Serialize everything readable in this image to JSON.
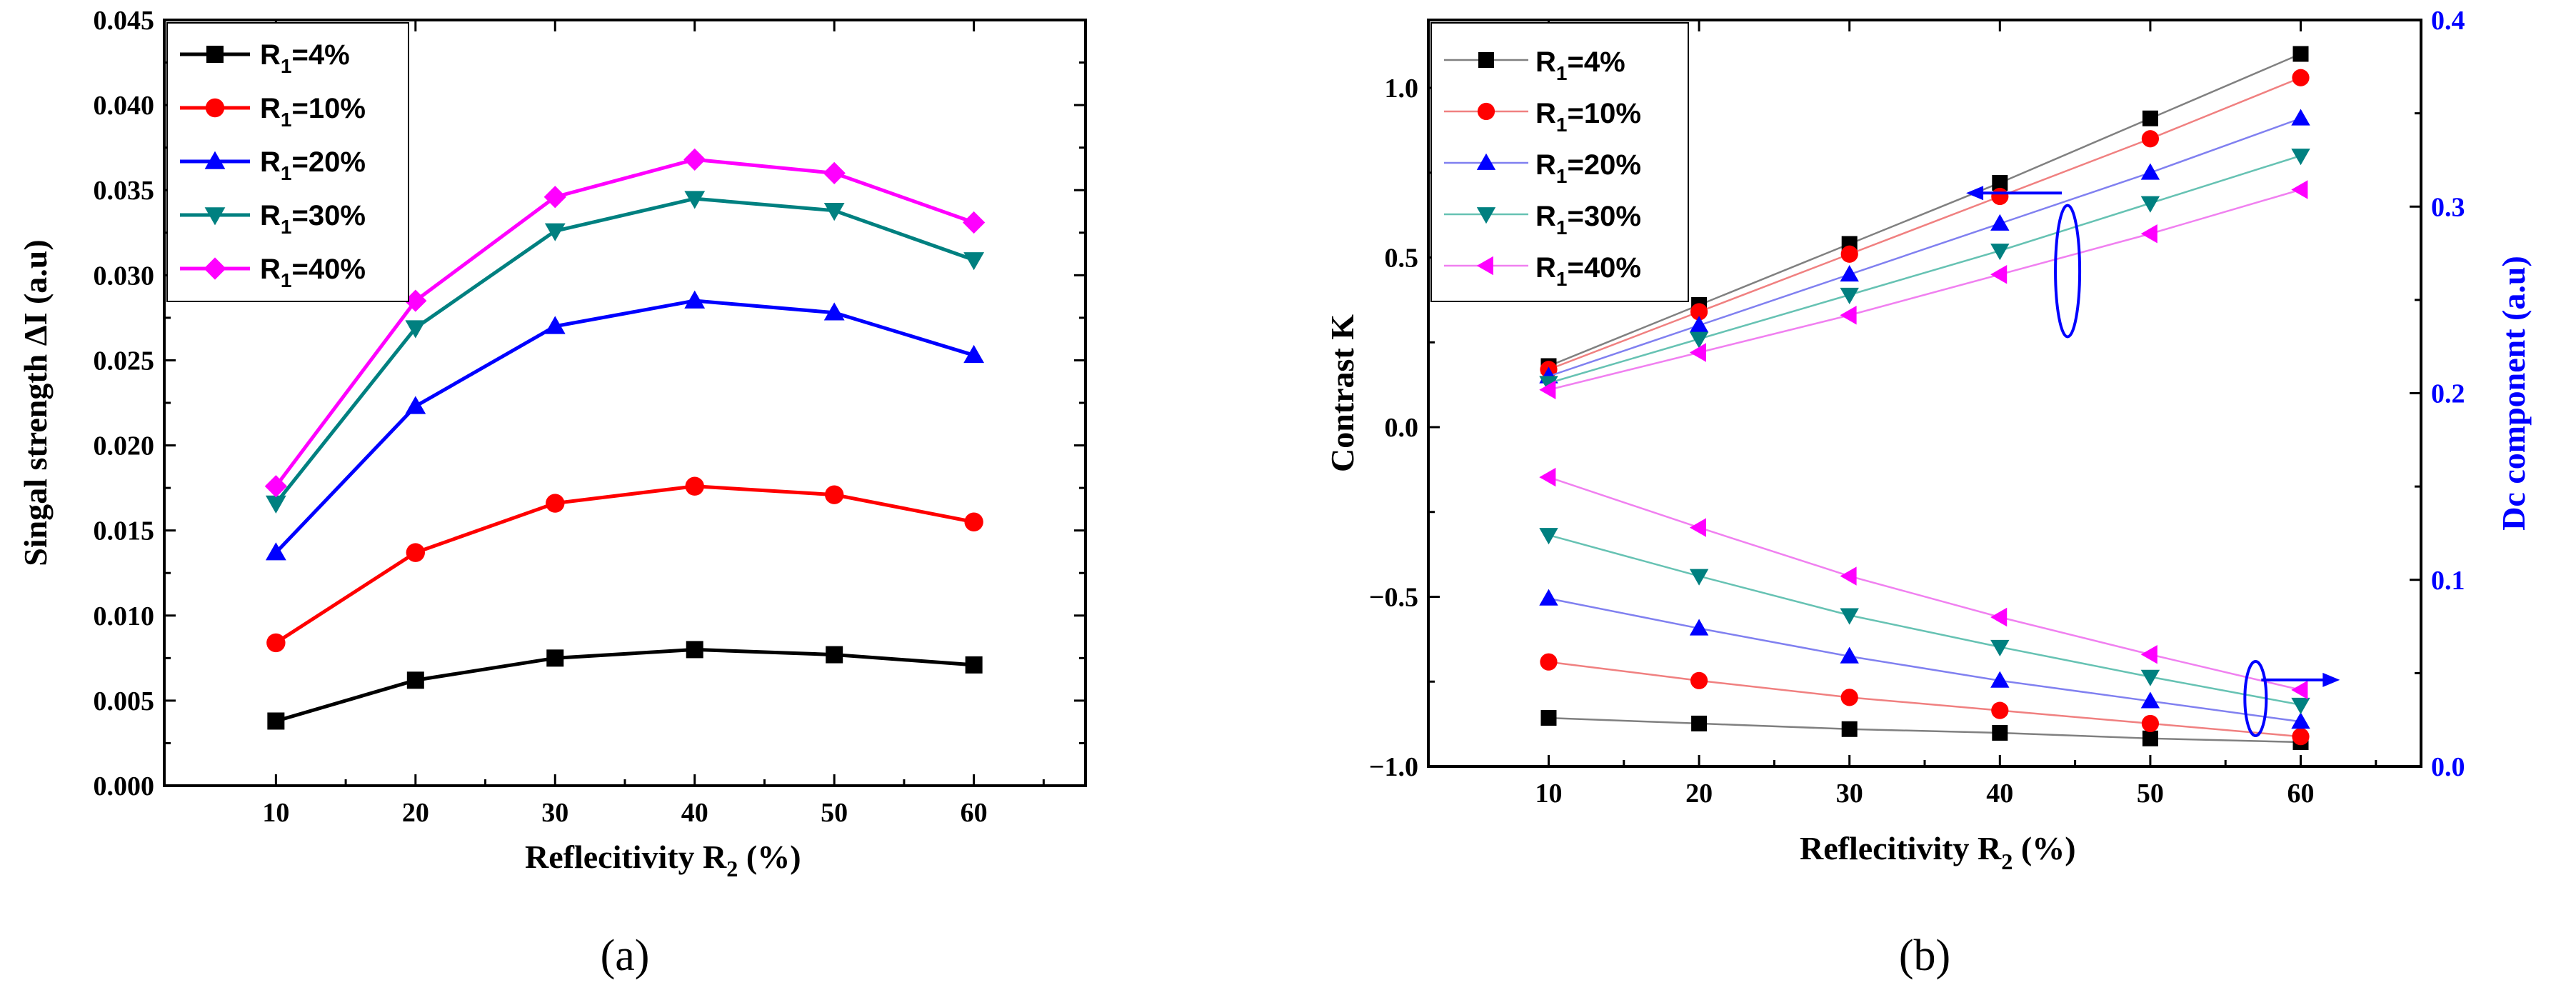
{
  "chart_data": [
    {
      "type": "line",
      "panel_label": "(a)",
      "xlabel": "Reflecitivity R",
      "xlabel_sub": "2",
      "xlabel_suffix": " (%)",
      "ylabel": "Singal strength ΔI (a.u)",
      "x": [
        10,
        20,
        30,
        40,
        50,
        60
      ],
      "xlim": [
        2,
        68
      ],
      "xticks": [
        "10",
        "20",
        "30",
        "40",
        "50",
        "60"
      ],
      "ylim": [
        0,
        0.045
      ],
      "yticks": [
        "0.000",
        "0.005",
        "0.010",
        "0.015",
        "0.020",
        "0.025",
        "0.030",
        "0.035",
        "0.040",
        "0.045"
      ],
      "legend_position": "top-left",
      "series": [
        {
          "name": "R",
          "sub": "1",
          "suffix": "=4%",
          "color": "#000000",
          "marker": "square",
          "values": [
            0.0038,
            0.0062,
            0.0075,
            0.008,
            0.0077,
            0.0071
          ]
        },
        {
          "name": "R",
          "sub": "1",
          "suffix": "=10%",
          "color": "#ff0000",
          "marker": "circle",
          "values": [
            0.0084,
            0.0137,
            0.0166,
            0.0176,
            0.0171,
            0.0155
          ]
        },
        {
          "name": "R",
          "sub": "1",
          "suffix": "=20%",
          "color": "#0000ff",
          "marker": "triangle-up",
          "values": [
            0.0137,
            0.0223,
            0.027,
            0.0285,
            0.0278,
            0.0253
          ]
        },
        {
          "name": "R",
          "sub": "1",
          "suffix": "=30%",
          "color": "#008080",
          "marker": "triangle-down",
          "values": [
            0.0166,
            0.0269,
            0.0326,
            0.0345,
            0.0338,
            0.0309
          ]
        },
        {
          "name": "R",
          "sub": "1",
          "suffix": "=40%",
          "color": "#ff00ff",
          "marker": "diamond",
          "values": [
            0.0176,
            0.0285,
            0.0346,
            0.0368,
            0.036,
            0.0331
          ]
        }
      ]
    },
    {
      "type": "line",
      "panel_label": "(b)",
      "xlabel": "Reflecitivity R",
      "xlabel_sub": "2",
      "xlabel_suffix": " (%)",
      "ylabel": "Contrast K",
      "y2label": "Dc component (a.u)",
      "y2color": "#0000ff",
      "x": [
        10,
        20,
        30,
        40,
        50,
        60
      ],
      "xlim": [
        2,
        68
      ],
      "xticks": [
        "10",
        "20",
        "30",
        "40",
        "50",
        "60"
      ],
      "ylim": [
        -1.0,
        1.2
      ],
      "yticks": [
        "−1.0",
        "−0.5",
        "0.0",
        "0.5",
        "1.0"
      ],
      "ytick_values": [
        -1.0,
        -0.5,
        0.0,
        0.5,
        1.0
      ],
      "y2lim": [
        0.0,
        0.4
      ],
      "y2ticks": [
        "0.0",
        "0.1",
        "0.2",
        "0.3",
        "0.4"
      ],
      "legend_position": "top-left",
      "annotations": [
        {
          "type": "ellipse-arrow",
          "points_to": "left axis (Contrast K)",
          "near_x": 44,
          "near_y": 0.45
        },
        {
          "type": "ellipse-arrow",
          "points_to": "right axis (Dc component)",
          "near_x": 57,
          "near_y": -0.75
        }
      ],
      "series": [
        {
          "name": "R",
          "sub": "1",
          "suffix": "=4%",
          "color": "#000000",
          "line_color": "#808080",
          "marker": "square",
          "contrast": [
            0.18,
            0.36,
            0.54,
            0.72,
            0.91,
            1.1
          ],
          "dc": [
            0.026,
            0.023,
            0.02,
            0.018,
            0.015,
            0.013
          ]
        },
        {
          "name": "R",
          "sub": "1",
          "suffix": "=10%",
          "color": "#ff0000",
          "line_color": "#f08080",
          "marker": "circle",
          "contrast": [
            0.17,
            0.34,
            0.51,
            0.68,
            0.85,
            1.03
          ],
          "dc": [
            0.056,
            0.046,
            0.037,
            0.03,
            0.023,
            0.016
          ]
        },
        {
          "name": "R",
          "sub": "1",
          "suffix": "=20%",
          "color": "#0000ff",
          "line_color": "#8080f0",
          "marker": "triangle-up",
          "contrast": [
            0.15,
            0.3,
            0.45,
            0.6,
            0.75,
            0.91
          ],
          "dc": [
            0.09,
            0.074,
            0.059,
            0.046,
            0.035,
            0.024
          ]
        },
        {
          "name": "R",
          "sub": "1",
          "suffix": "=30%",
          "color": "#008080",
          "line_color": "#66c2b3",
          "marker": "triangle-down",
          "contrast": [
            0.13,
            0.26,
            0.39,
            0.52,
            0.66,
            0.8
          ],
          "dc": [
            0.124,
            0.102,
            0.081,
            0.064,
            0.048,
            0.033
          ]
        },
        {
          "name": "R",
          "sub": "1",
          "suffix": "=40%",
          "color": "#ff00ff",
          "line_color": "#f080f0",
          "marker": "triangle-left",
          "contrast": [
            0.11,
            0.22,
            0.33,
            0.45,
            0.57,
            0.7
          ],
          "dc": [
            0.155,
            0.128,
            0.102,
            0.08,
            0.06,
            0.041
          ]
        }
      ]
    }
  ]
}
